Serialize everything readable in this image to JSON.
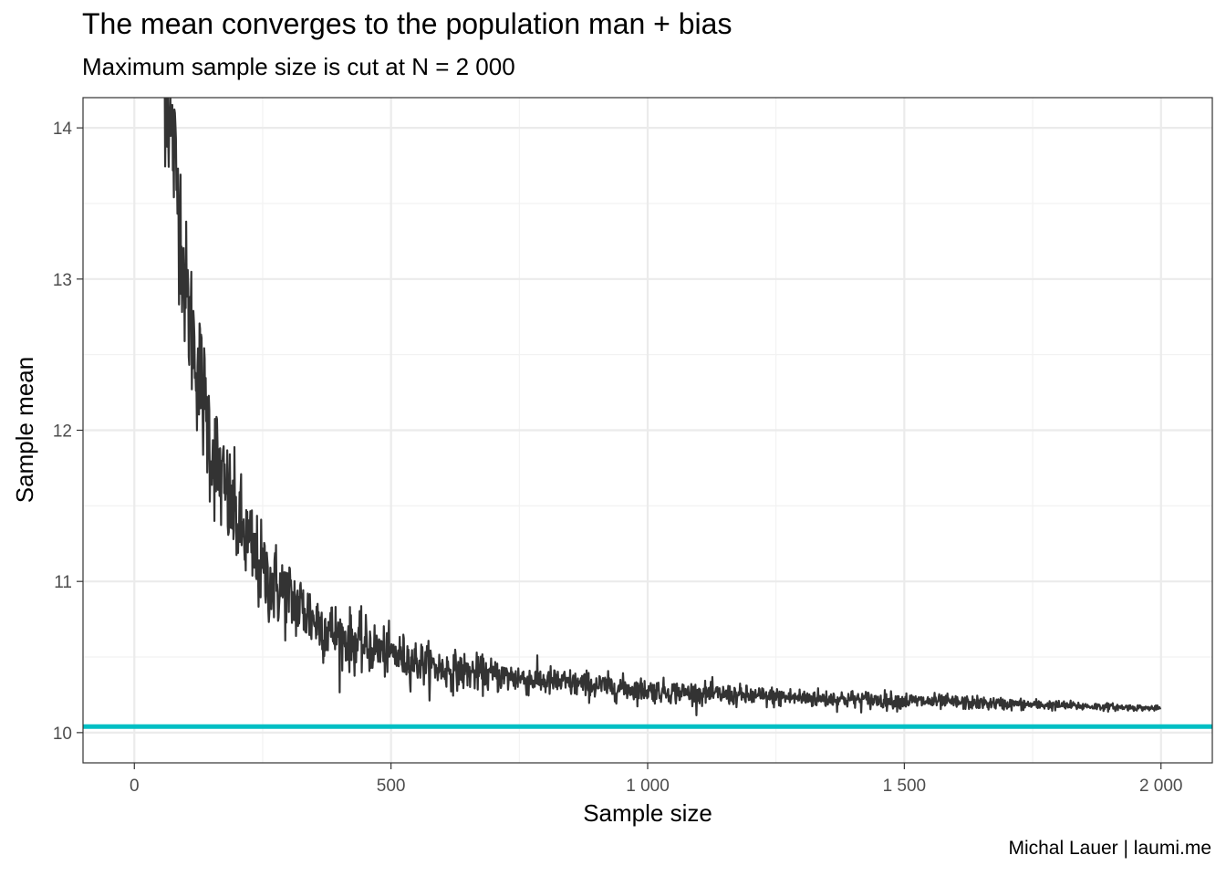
{
  "chart_data": {
    "type": "line",
    "title": "The mean converges to the population man + bias",
    "subtitle": "Maximum sample size is cut at N = 2 000",
    "xlabel": "Sample size",
    "ylabel": "Sample mean",
    "caption": "Michal Lauer | laumi.me",
    "xlim": [
      -100,
      2100
    ],
    "ylim": [
      9.8,
      14.2
    ],
    "x_ticks": [
      0,
      500,
      1000,
      1500,
      2000
    ],
    "x_tick_labels": [
      "0",
      "500",
      "1 000",
      "1 500",
      "2 000"
    ],
    "y_ticks": [
      10,
      11,
      12,
      13,
      14
    ],
    "y_tick_labels": [
      "10",
      "11",
      "12",
      "13",
      "14"
    ],
    "grid": true,
    "reference_line": {
      "y": 10.04,
      "color": "#00bfc4"
    },
    "series": [
      {
        "color": "#333333",
        "x_range": [
          50,
          2000
        ],
        "trend": [
          {
            "x": 50,
            "y": 15.0
          },
          {
            "x": 60,
            "y": 14.3
          },
          {
            "x": 75,
            "y": 13.9
          },
          {
            "x": 90,
            "y": 13.4
          },
          {
            "x": 100,
            "y": 12.9
          },
          {
            "x": 125,
            "y": 12.4
          },
          {
            "x": 150,
            "y": 11.9
          },
          {
            "x": 175,
            "y": 11.6
          },
          {
            "x": 200,
            "y": 11.4
          },
          {
            "x": 250,
            "y": 11.05
          },
          {
            "x": 300,
            "y": 10.9
          },
          {
            "x": 350,
            "y": 10.75
          },
          {
            "x": 400,
            "y": 10.63
          },
          {
            "x": 500,
            "y": 10.52
          },
          {
            "x": 600,
            "y": 10.42
          },
          {
            "x": 700,
            "y": 10.38
          },
          {
            "x": 800,
            "y": 10.34
          },
          {
            "x": 1000,
            "y": 10.28
          },
          {
            "x": 1200,
            "y": 10.24
          },
          {
            "x": 1400,
            "y": 10.22
          },
          {
            "x": 1600,
            "y": 10.2
          },
          {
            "x": 1800,
            "y": 10.18
          },
          {
            "x": 2000,
            "y": 10.16
          }
        ],
        "noise_amplitude": [
          {
            "x": 50,
            "y": 0.5
          },
          {
            "x": 100,
            "y": 0.45
          },
          {
            "x": 200,
            "y": 0.32
          },
          {
            "x": 300,
            "y": 0.24
          },
          {
            "x": 500,
            "y": 0.14
          },
          {
            "x": 700,
            "y": 0.1
          },
          {
            "x": 1000,
            "y": 0.07
          },
          {
            "x": 1500,
            "y": 0.05
          },
          {
            "x": 2000,
            "y": 0.015
          }
        ]
      }
    ]
  }
}
